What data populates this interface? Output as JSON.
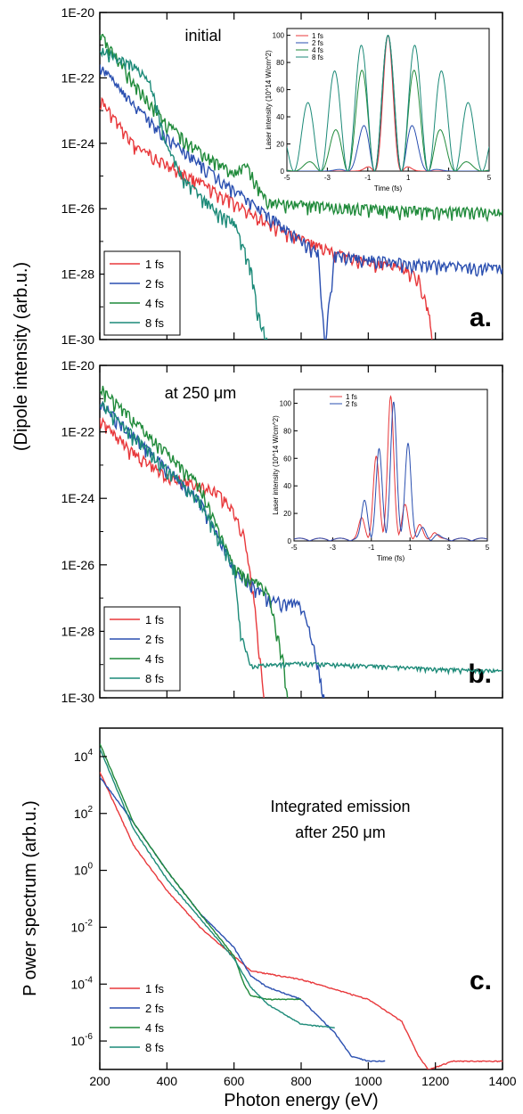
{
  "figure": {
    "shared_ylabel": "(Dipole intensity (arb.u.)",
    "colors": {
      "1 fs": "#e8383b",
      "2 fs": "#2a4fb0",
      "4 fs": "#1f8a3a",
      "8 fs": "#1c8a78"
    }
  },
  "chart_data": [
    {
      "type": "line",
      "panel_label": "a.",
      "title": "initial",
      "xlabel": "",
      "ylabel": "(Dipole intensity (arb.u.)",
      "y_scale": "log",
      "xlim": [
        200,
        1400
      ],
      "ylim": [
        1e-30,
        1e-20
      ],
      "y_ticks": [
        "1E-20",
        "1E-22",
        "1E-24",
        "1E-26",
        "1E-28",
        "1E-30"
      ],
      "legend_position": "bottom-left",
      "series": [
        {
          "name": "1 fs",
          "x": [
            200,
            300,
            400,
            500,
            600,
            700,
            800,
            900,
            1000,
            1100,
            1150,
            1180,
            1190
          ],
          "y": [
            3e-23,
            1.2e-24,
            3e-25,
            8e-26,
            2e-26,
            5e-27,
            1.5e-27,
            6e-28,
            3e-28,
            2e-28,
            1e-28,
            1e-29,
            1e-30
          ]
        },
        {
          "name": "2 fs",
          "x": [
            200,
            300,
            400,
            500,
            600,
            700,
            800,
            850,
            870,
            900,
            1100,
            1300,
            1400
          ],
          "y": [
            3e-22,
            2e-23,
            2e-24,
            3e-25,
            5e-26,
            8e-27,
            1.5e-27,
            6e-28,
            1e-30,
            5e-28,
            3e-28,
            2.2e-28,
            2e-28
          ]
        },
        {
          "name": "4 fs",
          "x": [
            200,
            300,
            400,
            500,
            600,
            640,
            660,
            700,
            900,
            1100,
            1300,
            1400
          ],
          "y": [
            3e-21,
            1e-22,
            5e-24,
            7e-25,
            1.5e-25,
            3e-25,
            1e-25,
            2e-26,
            1.5e-26,
            1.2e-26,
            1.1e-26,
            1e-26
          ]
        },
        {
          "name": "8 fs",
          "x": [
            200,
            300,
            350,
            400,
            450,
            500,
            550,
            600,
            650,
            670,
            700
          ],
          "y": [
            1e-21,
            3e-22,
            1e-22,
            1e-24,
            1e-25,
            3e-26,
            1e-26,
            5e-27,
            2e-28,
            1e-29,
            1e-30
          ]
        }
      ],
      "inset": {
        "type": "line",
        "xlabel": "Time (fs)",
        "ylabel": "Laser intensity (10^14 W/cm^2)",
        "xlim": [
          -5,
          5
        ],
        "ylim": [
          0,
          105
        ],
        "x_ticks": [
          "-5",
          "-3",
          "-1",
          "1",
          "3",
          "5"
        ],
        "y_ticks": [
          "0",
          "20",
          "40",
          "60",
          "80",
          "100"
        ],
        "legend": [
          "1 fs",
          "2 fs",
          "4 fs",
          "8 fs"
        ],
        "envelope_peaks": [
          {
            "name": "1 fs",
            "peak": 100,
            "fwhm_fs": 1
          },
          {
            "name": "2 fs",
            "peak": 100,
            "fwhm_fs": 2
          },
          {
            "name": "4 fs",
            "peak": 100,
            "fwhm_fs": 4
          },
          {
            "name": "8 fs",
            "peak": 100,
            "fwhm_fs": 8
          }
        ]
      }
    },
    {
      "type": "line",
      "panel_label": "b.",
      "title": "at 250 μm",
      "xlabel": "",
      "ylabel": "(Dipole intensity (arb.u.)",
      "y_scale": "log",
      "xlim": [
        200,
        1400
      ],
      "ylim": [
        1e-30,
        1e-20
      ],
      "y_ticks": [
        "1E-20",
        "1E-22",
        "1E-24",
        "1E-26",
        "1E-28",
        "1E-30"
      ],
      "legend_position": "bottom-left",
      "series": [
        {
          "name": "1 fs",
          "x": [
            200,
            300,
            400,
            500,
            550,
            600,
            630,
            660,
            690
          ],
          "y": [
            3e-22,
            3e-23,
            6e-24,
            3e-24,
            2e-24,
            5e-25,
            1e-25,
            1e-27,
            1e-30
          ]
        },
        {
          "name": "2 fs",
          "x": [
            200,
            300,
            400,
            500,
            600,
            700,
            750,
            800,
            830,
            850,
            870
          ],
          "y": [
            1e-21,
            1e-22,
            1e-23,
            1e-24,
            1e-26,
            1.2e-27,
            1e-27,
            8e-28,
            1e-28,
            1e-29,
            1e-30
          ]
        },
        {
          "name": "4 fs",
          "x": [
            200,
            300,
            400,
            500,
            600,
            650,
            700,
            730,
            750,
            760
          ],
          "y": [
            3e-21,
            3e-22,
            3e-23,
            3e-24,
            1e-26,
            5e-27,
            2e-27,
            1e-28,
            1e-29,
            1e-30
          ]
        },
        {
          "name": "8 fs",
          "x": [
            200,
            300,
            400,
            500,
            600,
            620,
            650,
            800,
            1000,
            1200,
            1400
          ],
          "y": [
            1e-21,
            1e-22,
            1e-23,
            1e-24,
            1e-26,
            1e-28,
            1e-29,
            1.2e-29,
            1e-29,
            8e-30,
            7e-30
          ]
        }
      ],
      "inset": {
        "type": "line",
        "xlabel": "Time (fs)",
        "ylabel": "Laser intensity (10^14 W/cm^2)",
        "xlim": [
          -5,
          5
        ],
        "ylim": [
          0,
          110
        ],
        "x_ticks": [
          "-5",
          "-3",
          "-1",
          "1",
          "3",
          "5"
        ],
        "y_ticks": [
          "0",
          "20",
          "40",
          "60",
          "80",
          "100"
        ],
        "legend": [
          "1 fs",
          "2 fs"
        ],
        "peaks": [
          {
            "name": "1 fs",
            "t_fs": [
              -2,
              -1,
              0,
              1,
              2,
              3
            ],
            "intensity": [
              15,
              60,
              105,
              25,
              10,
              5
            ]
          },
          {
            "name": "2 fs",
            "t_fs": [
              -2,
              -1,
              0,
              1,
              2,
              3
            ],
            "intensity": [
              28,
              65,
              100,
              70,
              8,
              3
            ]
          }
        ]
      }
    },
    {
      "type": "line",
      "panel_label": "c.",
      "title": "Integrated emission after 250 μm",
      "title_lines": [
        "Integrated emission",
        "after 250 μm"
      ],
      "xlabel": "Photon energy (eV)",
      "ylabel": "P ower spectrum (arb.u.)",
      "y_scale": "log",
      "xlim": [
        200,
        1400
      ],
      "ylim": [
        1e-07,
        100000.0
      ],
      "x_ticks": [
        "200",
        "400",
        "600",
        "800",
        "1000",
        "1200",
        "1400"
      ],
      "y_ticks": [
        "10^4",
        "10^2",
        "10^0",
        "10^-2",
        "10^-4",
        "10^-6"
      ],
      "legend_position": "bottom-left",
      "series": [
        {
          "name": "1 fs",
          "x": [
            200,
            300,
            400,
            500,
            550,
            600,
            650,
            800,
            1000,
            1100,
            1150,
            1180,
            1250,
            1400
          ],
          "y": [
            3000,
            8,
            0.2,
            0.01,
            0.003,
            0.001,
            0.0003,
            0.00015,
            3e-05,
            5e-06,
            3e-07,
            1e-07,
            2e-07,
            2e-07
          ]
        },
        {
          "name": "2 fs",
          "x": [
            200,
            300,
            400,
            500,
            600,
            650,
            700,
            800,
            900,
            950,
            1000,
            1050
          ],
          "y": [
            2000,
            50,
            1,
            0.03,
            0.002,
            0.0002,
            8e-05,
            3e-05,
            2e-06,
            3e-07,
            2e-07,
            2e-07
          ]
        },
        {
          "name": "4 fs",
          "x": [
            200,
            300,
            400,
            500,
            600,
            630,
            650,
            700,
            800
          ],
          "y": [
            30000,
            50,
            1,
            0.03,
            0.001,
            0.0001,
            4e-05,
            3e-05,
            3e-05
          ]
        },
        {
          "name": "8 fs",
          "x": [
            200,
            300,
            400,
            500,
            600,
            650,
            700,
            800,
            900
          ],
          "y": [
            20000,
            30,
            0.5,
            0.02,
            0.0008,
            8e-05,
            2e-05,
            4e-06,
            3e-06
          ]
        }
      ]
    }
  ]
}
